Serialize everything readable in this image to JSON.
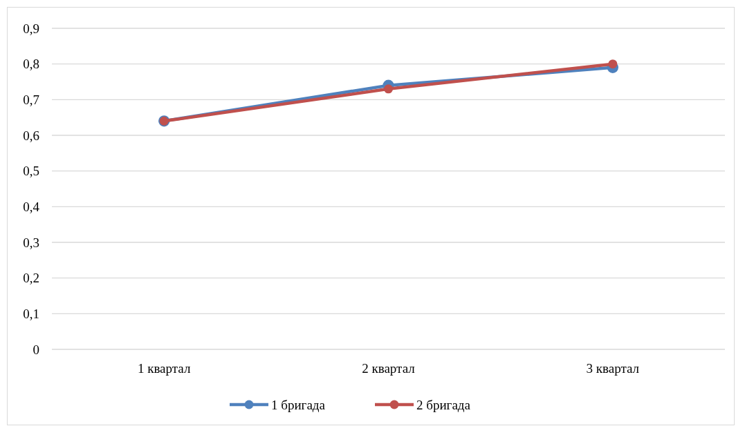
{
  "chart_data": {
    "type": "line",
    "categories": [
      "1 квартал",
      "2 квартал",
      "3 квартал"
    ],
    "series": [
      {
        "name": "1 бригада",
        "color": "#4f81bd",
        "values": [
          0.64,
          0.74,
          0.79
        ]
      },
      {
        "name": "2 бригада",
        "color": "#c0504d",
        "values": [
          0.64,
          0.73,
          0.8
        ]
      }
    ],
    "ylim": [
      0,
      0.9
    ],
    "yticks": [
      0,
      {
        "value": 0.1,
        "label": "0,1"
      },
      {
        "value": 0.2,
        "label": "0,2"
      },
      {
        "value": 0.3,
        "label": "0,3"
      },
      {
        "value": 0.4,
        "label": "0,4"
      },
      {
        "value": 0.5,
        "label": "0,5"
      },
      {
        "value": 0.6,
        "label": "0,6"
      },
      {
        "value": 0.7,
        "label": "0,7"
      },
      {
        "value": 0.8,
        "label": "0,8"
      },
      {
        "value": 0.9,
        "label": "0,9"
      }
    ],
    "grid": "y",
    "legend": "bottom",
    "marker": "circle",
    "line_style": "solid"
  }
}
